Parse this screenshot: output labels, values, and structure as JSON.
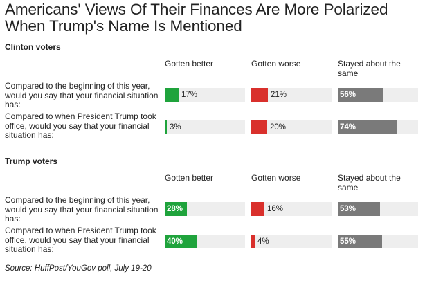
{
  "title_line1": "Americans' Views Of Their Finances Are More Polarized",
  "title_line2": "When Trump's Name Is Mentioned",
  "source": "Source: HuffPost/YouGov poll, July 19-20",
  "colors": {
    "better": "#1fa33c",
    "worse": "#d9302c",
    "same": "#7a7a7a",
    "track": "#eeeeee"
  },
  "chart_data": {
    "type": "bar",
    "title": "Americans' Views Of Their Finances Are More Polarized When Trump's Name Is Mentioned",
    "categories": [
      "Gotten better",
      "Gotten worse",
      "Stayed about the same"
    ],
    "unit": "%",
    "ylim": [
      0,
      100
    ],
    "groups": [
      {
        "name": "Clinton voters",
        "questions": [
          {
            "text": "Compared to the beginning of this year, would you say that your financial situation has:",
            "values": [
              17,
              21,
              56
            ],
            "labels": [
              "17%",
              "21%",
              "56%"
            ]
          },
          {
            "text": "Compared to when President Trump took office, would you say that your financial situation has:",
            "values": [
              3,
              20,
              74
            ],
            "labels": [
              "3%",
              "20%",
              "74%"
            ]
          }
        ]
      },
      {
        "name": "Trump voters",
        "questions": [
          {
            "text": "Compared to the beginning of this year, would you say that your financial situation has:",
            "values": [
              28,
              16,
              53
            ],
            "labels": [
              "28%",
              "16%",
              "53%"
            ]
          },
          {
            "text": "Compared to when President Trump took office, would you say that your financial situation has:",
            "values": [
              40,
              4,
              55
            ],
            "labels": [
              "40%",
              "4%",
              "55%"
            ]
          }
        ]
      }
    ]
  }
}
